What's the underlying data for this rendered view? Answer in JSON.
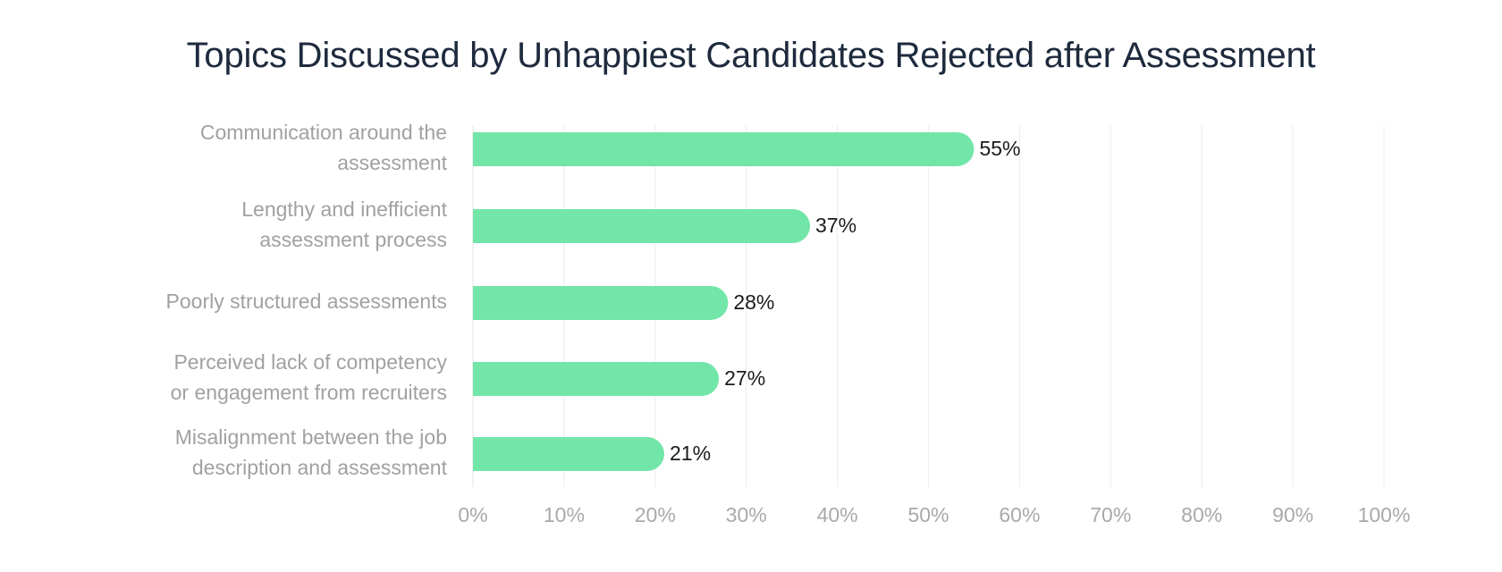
{
  "chart_data": {
    "type": "bar",
    "orientation": "horizontal",
    "title": "Topics Discussed by Unhappiest Candidates Rejected after Assessment",
    "categories": [
      [
        "Communication around the",
        "assessment"
      ],
      [
        "Lengthy and inefficient",
        "assessment process"
      ],
      [
        "Poorly structured assessments"
      ],
      [
        "Perceived lack of competency",
        "or engagement from recruiters"
      ],
      [
        "Misalignment between the job",
        "description and assessment"
      ]
    ],
    "values": [
      55,
      37,
      28,
      27,
      21
    ],
    "data_labels": [
      "55%",
      "37%",
      "28%",
      "27%",
      "21%"
    ],
    "x_ticks": [
      "0%",
      "10%",
      "20%",
      "30%",
      "40%",
      "50%",
      "60%",
      "70%",
      "80%",
      "90%",
      "100%"
    ],
    "xlim": [
      0,
      100
    ],
    "xlabel": "",
    "ylabel": "",
    "grid": true,
    "legend": "none",
    "colors": {
      "bar": "#72e6a8",
      "grid": "#efefef",
      "title": "#1e2a3d",
      "category_label": "#a1a1a1",
      "tick_label": "#a9a9a9",
      "data_label": "#1b1b1b"
    }
  }
}
